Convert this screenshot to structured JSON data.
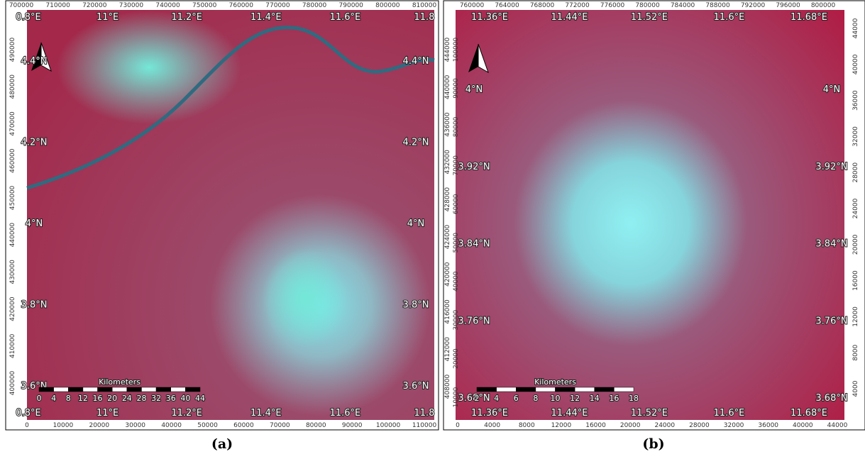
{
  "panels": [
    {
      "caption": "(a)",
      "top_ticks": [
        "700000",
        "710000",
        "720000",
        "730000",
        "740000",
        "750000",
        "760000",
        "770000",
        "780000",
        "790000",
        "800000",
        "810000"
      ],
      "bottom_ticks": [
        "0",
        "10000",
        "20000",
        "30000",
        "40000",
        "50000",
        "60000",
        "70000",
        "80000",
        "90000",
        "100000",
        "110000"
      ],
      "left_ticks": [
        "490000",
        "480000",
        "470000",
        "460000",
        "450000",
        "440000",
        "430000",
        "420000",
        "410000",
        "400000"
      ],
      "lon_labels": [
        "0.8°E",
        "11°E",
        "11.2°E",
        "11.4°E",
        "11.6°E",
        "11.8"
      ],
      "lat_labels": [
        "4.4°N",
        "4.2°N",
        "4°N",
        "3.8°N",
        "3.6°N"
      ],
      "scale_title": "Kilometers",
      "scale_labels": [
        "0",
        "4",
        "8",
        "12",
        "16",
        "20",
        "24",
        "28",
        "32",
        "36",
        "40",
        "44"
      ]
    },
    {
      "caption": "(b)",
      "top_ticks": [
        "760000",
        "764000",
        "768000",
        "772000",
        "776000",
        "780000",
        "784000",
        "788000",
        "792000",
        "796000",
        "800000"
      ],
      "bottom_ticks": [
        "0",
        "4000",
        "8000",
        "12000",
        "16000",
        "20000",
        "24000",
        "28000",
        "32000",
        "36000",
        "40000",
        "44000"
      ],
      "left_ticks": [
        "444000",
        "440000",
        "436000",
        "432000",
        "428000",
        "424000",
        "420000",
        "416000",
        "412000",
        "408000"
      ],
      "left_ticks_inner": [
        "100000",
        "90000",
        "80000",
        "70000",
        "60000",
        "50000",
        "40000",
        "30000",
        "20000",
        "10000"
      ],
      "right_ticks": [
        "44000",
        "40000",
        "36000",
        "32000",
        "28000",
        "24000",
        "20000",
        "16000",
        "12000",
        "8000",
        "4000"
      ],
      "lon_labels": [
        "11.36°E",
        "11.44°E",
        "11.52°E",
        "11.6°E",
        "11.68°E"
      ],
      "lat_labels": [
        "4°N",
        "3.92°N",
        "3.84°N",
        "3.76°N",
        "3.68°N"
      ],
      "scale_title": "Kilometers",
      "scale_labels": [
        "2",
        "4",
        "6",
        "8",
        "10",
        "12",
        "14",
        "16",
        "18"
      ]
    }
  ]
}
